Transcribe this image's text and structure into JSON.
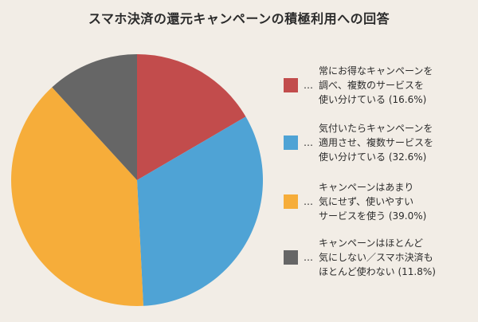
{
  "title": "スマホ決済の還元キャンペーンの積極利用への回答",
  "chart_data": {
    "type": "pie",
    "labels": [
      "常にお得なキャンペーンを\n調べ、複数のサービスを\n使い分けている (16.6%)",
      "気付いたらキャンペーンを\n適用させ、複数サービスを\n使い分けている (32.6%)",
      "キャンペーンはあまり\n気にせず、使いやすい\nサービスを使う (39.0%)",
      "キャンペーンはほとんど\n気にしない／スマホ決済も\nほとんど使わない (11.8%)"
    ],
    "values": [
      16.6,
      32.6,
      39.0,
      11.8
    ],
    "colors": [
      "#c24c4c",
      "#4fa3d5",
      "#f6ad3a",
      "#666666"
    ],
    "legend_marker": "…",
    "legend_position": "right"
  }
}
